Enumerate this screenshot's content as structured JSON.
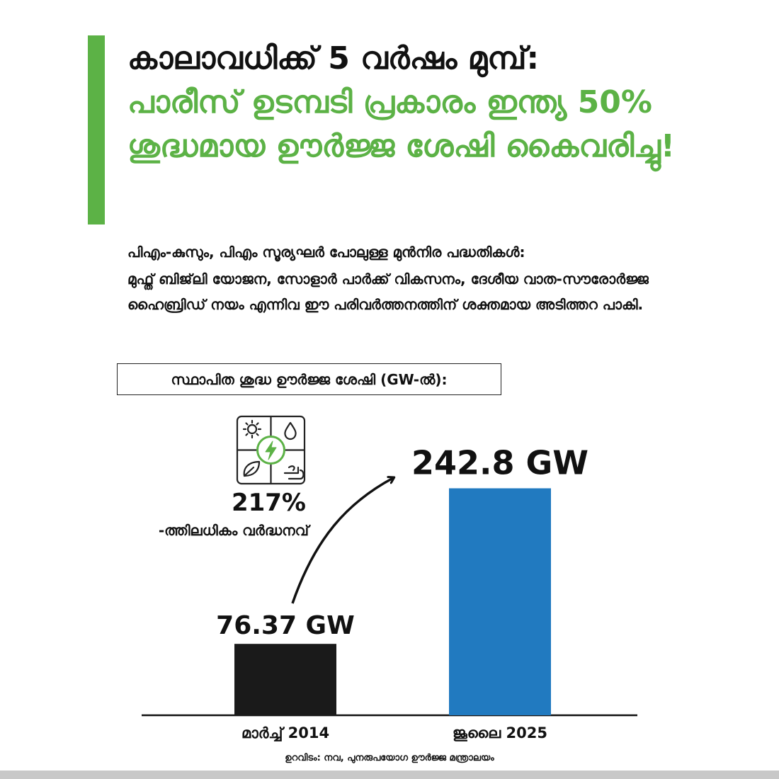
{
  "headline": {
    "line1": "കാലാവധിക്ക് 5 വർഷം മുമ്പ്:",
    "line2": "പാരീസ് ഉടമ്പടി പ്രകാരം ഇന്ത്യ 50% ശുദ്ധമായ ഊർജ്ജ ശേഷി കൈവരിച്ചു!"
  },
  "intro": {
    "p1": "പിഎം-കുസും, പിഎം സൂര്യഘർ പോലുള്ള മുൻനിര പദ്ധതികൾ:",
    "p2": "മുഫ്ത് ബിജ്‌ലി യോജന, സോളാർ പാർക്ക് വികസനം, ദേശീയ വാത-സൗരോർജ്ജ ഹൈബ്രിഡ് നയം എന്നിവ ഈ പരിവർത്തനത്തിന് ശക്തമായ അടിത്തറ പാകി."
  },
  "colors": {
    "accent": "#5cb246",
    "bar_2014": "#1a1a1a",
    "bar_2025": "#217ac0",
    "strip": "#c8c8c8"
  },
  "icon_name": "renewable-energy-grid-icon",
  "growth": {
    "percent": "217%",
    "label": "-ത്തിലധികം വർദ്ധനവ്"
  },
  "chart_data": {
    "type": "bar",
    "title": "സ്ഥാപിത ശുദ്ധ ഊർജ്ജ ശേഷി (GW-ൽ):",
    "categories": [
      "മാർച്ച് 2014",
      "ജൂലൈ 2025"
    ],
    "values": [
      76.37,
      242.8
    ],
    "value_labels": [
      "76.37 GW",
      "242.8 GW"
    ],
    "unit": "GW",
    "ylim": [
      0,
      300
    ],
    "grid": false,
    "legend": "none"
  },
  "source": "ഉറവിടം: നവ, പുനരുപയോഗ ഊർജ്ജ മന്ത്രാലയം"
}
